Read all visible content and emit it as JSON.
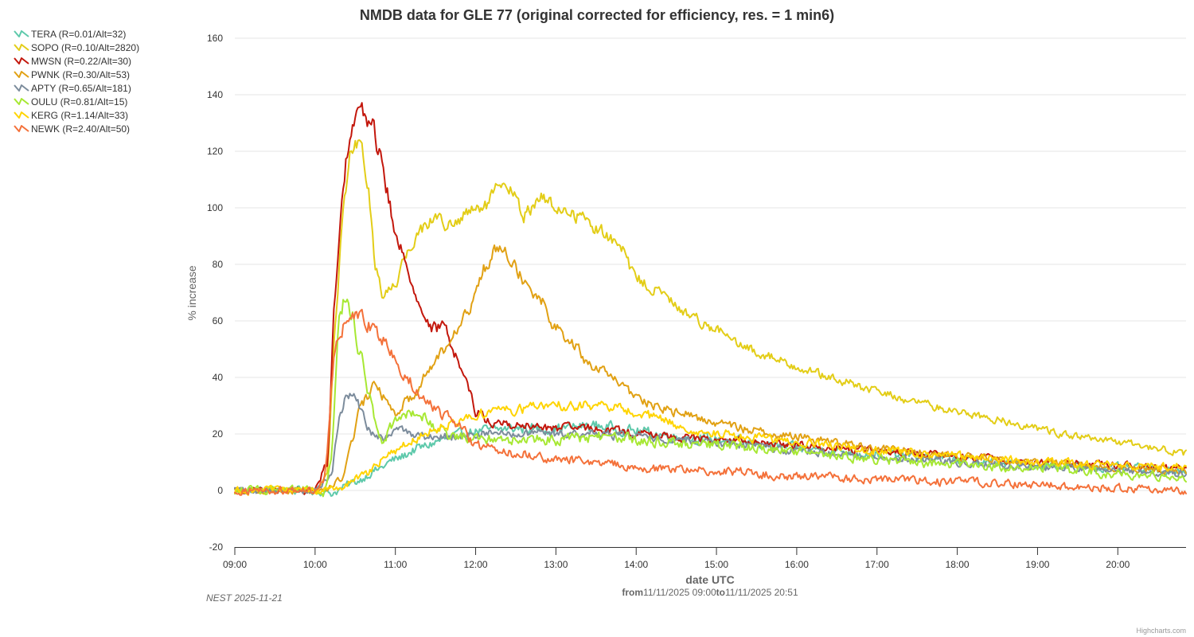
{
  "chart_data": {
    "type": "line",
    "title": "NMDB data for GLE 77 (original corrected for efficiency, res. = 1 min6)",
    "xlabel": "date UTC",
    "xlabel_range": {
      "from_label": "from",
      "from_value": "11/11/2025 09:00",
      "to_label": "to",
      "to_value": "11/11/2025 20:51"
    },
    "ylabel": "% increase",
    "ylim": [
      -20,
      160
    ],
    "yticks": [
      -20,
      0,
      20,
      40,
      60,
      80,
      100,
      120,
      140,
      160
    ],
    "ytick_labels": [
      "-20",
      "0",
      "20",
      "40",
      "60",
      "80",
      "100",
      "120",
      "140",
      "160"
    ],
    "xlim_hours": [
      9.0,
      20.85
    ],
    "xticks_hours": [
      9,
      10,
      11,
      12,
      13,
      14,
      15,
      16,
      17,
      18,
      19,
      20
    ],
    "xtick_labels": [
      "09:00",
      "10:00",
      "11:00",
      "12:00",
      "13:00",
      "14:00",
      "15:00",
      "16:00",
      "17:00",
      "18:00",
      "19:00",
      "20:00"
    ],
    "grid": true,
    "legend_position": "top-left",
    "caption": "NEST 2025-11-21",
    "credit": "Highcharts.com",
    "resolution_minutes": 1,
    "series": [
      {
        "name": "TERA (R=0.01/Alt=32)",
        "color": "#5ec9ab",
        "noise": 2.2,
        "keypoints": [
          [
            9.0,
            0
          ],
          [
            10.0,
            0
          ],
          [
            10.2,
            -1
          ],
          [
            10.5,
            3
          ],
          [
            10.75,
            7
          ],
          [
            11.0,
            11
          ],
          [
            11.3,
            15
          ],
          [
            11.6,
            18
          ],
          [
            12.0,
            21
          ],
          [
            12.5,
            22
          ],
          [
            13.0,
            22
          ],
          [
            13.5,
            23
          ],
          [
            14.0,
            21
          ],
          [
            14.5,
            19
          ],
          [
            15.0,
            18
          ],
          [
            16.0,
            15
          ],
          [
            17.0,
            13
          ],
          [
            18.0,
            11
          ],
          [
            19.0,
            9
          ],
          [
            20.0,
            8
          ],
          [
            20.85,
            7
          ]
        ]
      },
      {
        "name": "SOPO (R=0.10/Alt=2820)",
        "color": "#e3cd17",
        "noise": 1.5,
        "keypoints": [
          [
            9.0,
            0
          ],
          [
            10.0,
            0
          ],
          [
            10.15,
            5
          ],
          [
            10.25,
            60
          ],
          [
            10.35,
            100
          ],
          [
            10.45,
            120
          ],
          [
            10.55,
            124
          ],
          [
            10.65,
            110
          ],
          [
            10.75,
            80
          ],
          [
            10.85,
            69
          ],
          [
            11.0,
            73
          ],
          [
            11.1,
            82
          ],
          [
            11.3,
            92
          ],
          [
            11.5,
            97
          ],
          [
            11.7,
            93
          ],
          [
            11.9,
            98
          ],
          [
            12.1,
            100
          ],
          [
            12.3,
            107
          ],
          [
            12.45,
            106
          ],
          [
            12.6,
            97
          ],
          [
            12.8,
            104
          ],
          [
            13.0,
            100
          ],
          [
            13.3,
            97
          ],
          [
            13.6,
            91
          ],
          [
            13.8,
            86
          ],
          [
            14.0,
            75
          ],
          [
            14.3,
            70
          ],
          [
            14.6,
            63
          ],
          [
            15.0,
            57
          ],
          [
            15.3,
            51
          ],
          [
            15.6,
            48
          ],
          [
            16.0,
            44
          ],
          [
            16.5,
            39
          ],
          [
            17.0,
            35
          ],
          [
            17.5,
            31
          ],
          [
            18.0,
            28
          ],
          [
            18.5,
            25
          ],
          [
            19.0,
            22
          ],
          [
            19.5,
            19
          ],
          [
            20.0,
            17
          ],
          [
            20.5,
            15
          ],
          [
            20.85,
            13
          ]
        ]
      },
      {
        "name": "MWSN (R=0.22/Alt=30)",
        "color": "#c3170c",
        "noise": 1.8,
        "keypoints": [
          [
            9.0,
            0
          ],
          [
            10.0,
            0
          ],
          [
            10.15,
            10
          ],
          [
            10.25,
            70
          ],
          [
            10.35,
            110
          ],
          [
            10.45,
            130
          ],
          [
            10.55,
            133
          ],
          [
            10.7,
            131
          ],
          [
            10.8,
            120
          ],
          [
            10.9,
            105
          ],
          [
            11.0,
            90
          ],
          [
            11.1,
            83
          ],
          [
            11.2,
            76
          ],
          [
            11.3,
            65
          ],
          [
            11.45,
            57
          ],
          [
            11.6,
            58
          ],
          [
            11.7,
            52
          ],
          [
            11.8,
            44
          ],
          [
            11.9,
            38
          ],
          [
            12.0,
            28
          ],
          [
            12.2,
            24
          ],
          [
            12.5,
            23
          ],
          [
            13.0,
            22
          ],
          [
            13.5,
            22
          ],
          [
            14.0,
            20
          ],
          [
            15.0,
            18
          ],
          [
            16.0,
            16
          ],
          [
            17.0,
            14
          ],
          [
            18.0,
            12
          ],
          [
            19.0,
            10
          ],
          [
            20.0,
            9
          ],
          [
            20.85,
            8
          ]
        ]
      },
      {
        "name": "PWNK (R=0.30/Alt=53)",
        "color": "#e1a114",
        "noise": 1.8,
        "keypoints": [
          [
            9.0,
            0
          ],
          [
            10.0,
            0
          ],
          [
            10.2,
            1
          ],
          [
            10.35,
            5
          ],
          [
            10.45,
            17
          ],
          [
            10.55,
            28
          ],
          [
            10.65,
            33
          ],
          [
            10.75,
            38
          ],
          [
            10.85,
            33
          ],
          [
            11.0,
            28
          ],
          [
            11.2,
            33
          ],
          [
            11.4,
            42
          ],
          [
            11.6,
            50
          ],
          [
            11.75,
            58
          ],
          [
            11.9,
            62
          ],
          [
            12.0,
            70
          ],
          [
            12.1,
            78
          ],
          [
            12.25,
            86
          ],
          [
            12.35,
            88
          ],
          [
            12.45,
            82
          ],
          [
            12.6,
            75
          ],
          [
            12.8,
            68
          ],
          [
            13.0,
            58
          ],
          [
            13.2,
            52
          ],
          [
            13.4,
            45
          ],
          [
            13.7,
            40
          ],
          [
            14.0,
            33
          ],
          [
            14.3,
            29
          ],
          [
            14.6,
            27
          ],
          [
            15.0,
            24
          ],
          [
            15.5,
            21
          ],
          [
            16.0,
            19
          ],
          [
            17.0,
            15
          ],
          [
            18.0,
            12
          ],
          [
            19.0,
            10
          ],
          [
            20.0,
            8
          ],
          [
            20.85,
            7
          ]
        ]
      },
      {
        "name": "APTY (R=0.65/Alt=181)",
        "color": "#7c8c9c",
        "noise": 1.8,
        "keypoints": [
          [
            9.0,
            0
          ],
          [
            10.0,
            0
          ],
          [
            10.2,
            5
          ],
          [
            10.3,
            25
          ],
          [
            10.4,
            35
          ],
          [
            10.5,
            33
          ],
          [
            10.6,
            26
          ],
          [
            10.7,
            20
          ],
          [
            10.85,
            18
          ],
          [
            11.0,
            22
          ],
          [
            11.2,
            20
          ],
          [
            11.5,
            19
          ],
          [
            12.0,
            20
          ],
          [
            12.5,
            20
          ],
          [
            13.0,
            20
          ],
          [
            13.5,
            20
          ],
          [
            14.0,
            19
          ],
          [
            15.0,
            17
          ],
          [
            16.0,
            14
          ],
          [
            17.0,
            12
          ],
          [
            18.0,
            10
          ],
          [
            19.0,
            8
          ],
          [
            20.0,
            7
          ],
          [
            20.85,
            6
          ]
        ]
      },
      {
        "name": "OULU (R=0.81/Alt=15)",
        "color": "#a7e833",
        "noise": 2.4,
        "keypoints": [
          [
            9.0,
            0
          ],
          [
            10.0,
            0
          ],
          [
            10.1,
            -3
          ],
          [
            10.2,
            10
          ],
          [
            10.3,
            60
          ],
          [
            10.38,
            70
          ],
          [
            10.45,
            64
          ],
          [
            10.55,
            50
          ],
          [
            10.65,
            36
          ],
          [
            10.75,
            25
          ],
          [
            10.85,
            18
          ],
          [
            11.0,
            25
          ],
          [
            11.15,
            28
          ],
          [
            11.3,
            28
          ],
          [
            11.5,
            22
          ],
          [
            11.7,
            19
          ],
          [
            12.0,
            19
          ],
          [
            12.5,
            18
          ],
          [
            13.0,
            18
          ],
          [
            13.5,
            19
          ],
          [
            14.0,
            18
          ],
          [
            15.0,
            16
          ],
          [
            16.0,
            14
          ],
          [
            17.0,
            11
          ],
          [
            18.0,
            9
          ],
          [
            19.0,
            8
          ],
          [
            20.0,
            6
          ],
          [
            20.85,
            5
          ]
        ]
      },
      {
        "name": "KERG (R=1.14/Alt=33)",
        "color": "#ffd400",
        "noise": 2.0,
        "keypoints": [
          [
            9.0,
            0
          ],
          [
            10.0,
            0
          ],
          [
            10.3,
            1
          ],
          [
            10.6,
            5
          ],
          [
            10.9,
            12
          ],
          [
            11.2,
            18
          ],
          [
            11.5,
            22
          ],
          [
            11.8,
            25
          ],
          [
            12.2,
            28
          ],
          [
            12.6,
            29
          ],
          [
            13.0,
            30
          ],
          [
            13.5,
            30
          ],
          [
            14.0,
            28
          ],
          [
            14.3,
            25
          ],
          [
            14.6,
            22
          ],
          [
            15.0,
            20
          ],
          [
            16.0,
            17
          ],
          [
            17.0,
            14
          ],
          [
            18.0,
            12
          ],
          [
            19.0,
            10
          ],
          [
            20.0,
            9
          ],
          [
            20.85,
            8
          ]
        ]
      },
      {
        "name": "NEWK (R=2.40/Alt=50)",
        "color": "#f4713a",
        "noise": 2.2,
        "keypoints": [
          [
            9.0,
            0
          ],
          [
            10.0,
            0
          ],
          [
            10.12,
            5
          ],
          [
            10.25,
            50
          ],
          [
            10.35,
            58
          ],
          [
            10.5,
            62
          ],
          [
            10.7,
            58
          ],
          [
            10.9,
            52
          ],
          [
            11.0,
            46
          ],
          [
            11.2,
            38
          ],
          [
            11.4,
            31
          ],
          [
            11.6,
            27
          ],
          [
            11.8,
            22
          ],
          [
            12.0,
            16
          ],
          [
            12.5,
            13
          ],
          [
            13.0,
            11
          ],
          [
            13.5,
            10
          ],
          [
            14.0,
            8
          ],
          [
            15.0,
            7
          ],
          [
            16.0,
            5
          ],
          [
            17.0,
            4
          ],
          [
            18.0,
            3
          ],
          [
            19.0,
            2
          ],
          [
            20.0,
            1
          ],
          [
            20.85,
            0
          ]
        ]
      }
    ]
  }
}
